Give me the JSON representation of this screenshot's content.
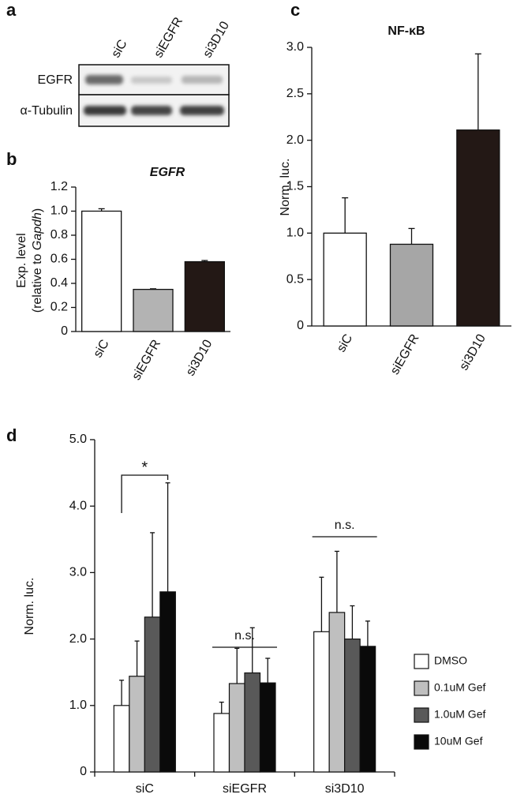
{
  "blot": {
    "label": "a",
    "lanes": [
      "siC",
      "siEGFR",
      "si3D10"
    ],
    "rows": [
      "EGFR",
      "α-Tubulin"
    ]
  },
  "chart_data": [
    {
      "type": "bar",
      "label": "b",
      "title": "EGFR",
      "ylabel": "Exp. level",
      "ylabel2": [
        "(relative to ",
        "Gapdh",
        ")"
      ],
      "categories": [
        "siC",
        "siEGFR",
        "si3D10"
      ],
      "values": [
        1.0,
        0.35,
        0.58
      ],
      "errors": [
        0.02,
        0.005,
        0.01
      ],
      "colors": [
        "#ffffff",
        "#b3b3b3",
        "#231815"
      ],
      "ylim": [
        0,
        1.2
      ],
      "yticks": [
        0,
        0.2,
        0.4,
        0.6,
        0.8,
        {
          "value": 1,
          "label": "1.0"
        },
        1.2
      ]
    },
    {
      "type": "bar",
      "label": "c",
      "title": "NF-κB",
      "ylabel": "Norm. luc.",
      "categories": [
        "siC",
        "siEGFR",
        "si3D10"
      ],
      "values": [
        1.0,
        0.88,
        2.11
      ],
      "errors": [
        0.38,
        0.17,
        0.82
      ],
      "colors": [
        "#ffffff",
        "#a6a6a6",
        "#231815"
      ],
      "ylim": [
        0,
        3
      ],
      "yticks": [
        0,
        0.5,
        {
          "value": 1,
          "label": "1.0"
        },
        1.5,
        {
          "value": 2,
          "label": "2.0"
        },
        2.5,
        {
          "value": 3,
          "label": "3.0"
        }
      ]
    },
    {
      "type": "grouped_bar",
      "label": "d",
      "ylabel": "Norm. luc.",
      "categories": [
        "siC",
        "siEGFR",
        "si3D10"
      ],
      "series": [
        {
          "name": "DMSO",
          "color": "#ffffff",
          "values": [
            1.0,
            0.88,
            2.11
          ],
          "errors": [
            0.38,
            0.17,
            0.82
          ]
        },
        {
          "name": "0.1uM Gef",
          "color": "#bfbfbf",
          "values": [
            1.44,
            1.33,
            2.4
          ],
          "errors": [
            0.53,
            0.53,
            0.92
          ]
        },
        {
          "name": "1.0uM Gef",
          "color": "#595959",
          "values": [
            2.33,
            1.49,
            2.0
          ],
          "errors": [
            1.27,
            0.68,
            0.5
          ]
        },
        {
          "name": "10uM Gef",
          "color": "#0a0a0a",
          "values": [
            2.71,
            1.34,
            1.89
          ],
          "errors": [
            1.64,
            0.37,
            0.38
          ]
        }
      ],
      "annotations": [
        "*",
        "n.s.",
        "n.s."
      ],
      "legend": "lower right",
      "ylim": [
        0,
        5
      ],
      "yticks": [
        0,
        {
          "value": 1,
          "label": "1.0"
        },
        {
          "value": 2,
          "label": "2.0"
        },
        {
          "value": 3,
          "label": "3.0"
        },
        {
          "value": 4,
          "label": "4.0"
        },
        {
          "value": 5,
          "label": "5.0"
        }
      ]
    }
  ]
}
